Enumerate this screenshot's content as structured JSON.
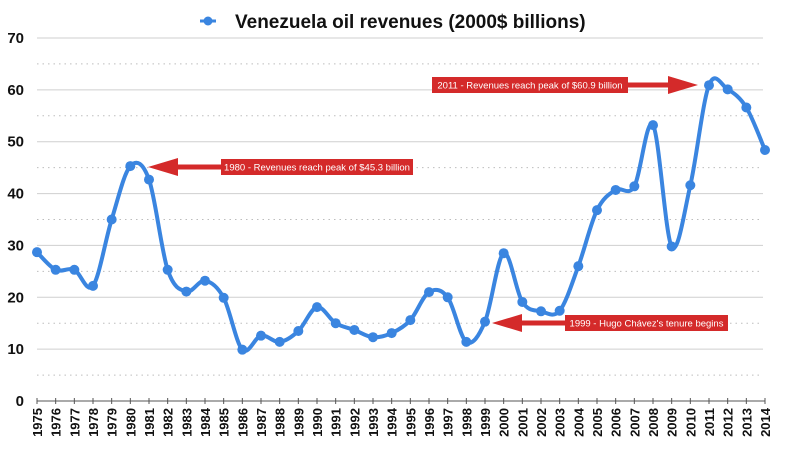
{
  "chart_data": {
    "type": "line",
    "title": "Venezuela oil revenues (2000$ billions)",
    "xlabel": "",
    "ylabel": "",
    "ylim": [
      0,
      70
    ],
    "yticks": [
      "0",
      "10",
      "20",
      "30",
      "40",
      "50",
      "60",
      "70"
    ],
    "grid": true,
    "legend": "top-center",
    "categories": [
      "1975",
      "1976",
      "1977",
      "1978",
      "1979",
      "1980",
      "1981",
      "1982",
      "1983",
      "1984",
      "1985",
      "1986",
      "1987",
      "1988",
      "1989",
      "1990",
      "1991",
      "1992",
      "1993",
      "1994",
      "1995",
      "1996",
      "1997",
      "1998",
      "1999",
      "2000",
      "2001",
      "2002",
      "2003",
      "2004",
      "2005",
      "2006",
      "2007",
      "2008",
      "2009",
      "2010",
      "2011",
      "2012",
      "2013",
      "2014"
    ],
    "series": [
      {
        "name": "Venezuela oil revenues (2000$ billions)",
        "color": "#3a85e0",
        "values": [
          28.7,
          25.3,
          25.3,
          22.2,
          35.0,
          45.3,
          42.7,
          25.3,
          21.1,
          23.2,
          19.9,
          9.9,
          12.6,
          11.4,
          13.5,
          18.1,
          15.0,
          13.7,
          12.3,
          13.1,
          15.6,
          21.0,
          20.0,
          11.4,
          15.3,
          28.5,
          19.1,
          17.3,
          17.4,
          26.0,
          36.8,
          40.7,
          41.4,
          53.2,
          29.8,
          41.6,
          60.9,
          60.1,
          56.6,
          48.4
        ]
      }
    ],
    "annotations": [
      {
        "text": "1980 - Revenues reach peak of $45.3 billion",
        "target_year": "1980",
        "target_value": 45.3,
        "arrow": "left",
        "color": "#d42a2a"
      },
      {
        "text": "2011 - Revenues reach peak of $60.9 billion",
        "target_year": "2011",
        "target_value": 60.9,
        "arrow": "right",
        "color": "#d42a2a"
      },
      {
        "text": "1999 - Hugo Chávez's tenure begins",
        "target_year": "1999",
        "target_value": 15.3,
        "arrow": "left",
        "color": "#d42a2a"
      }
    ]
  }
}
